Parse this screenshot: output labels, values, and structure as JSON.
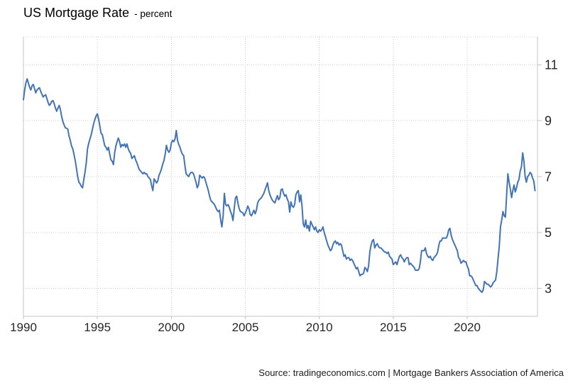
{
  "header": {
    "title": "US Mortgage Rate",
    "subtitle": "- percent"
  },
  "footer": {
    "source": "Source: tradingeconomics.com | Mortgage Bankers Association of America"
  },
  "chart_data": {
    "type": "line",
    "title": "US Mortgage Rate",
    "ylabel": "percent",
    "xlabel": "",
    "legend_position": "none",
    "grid": true,
    "y_axis_side": "right",
    "x_ticks": [
      1990,
      1995,
      2000,
      2005,
      2010,
      2015,
      2020
    ],
    "y_ticks": [
      3,
      5,
      7,
      9,
      11
    ],
    "x_range": [
      1990,
      2024.75
    ],
    "y_range": [
      2,
      12
    ],
    "colors": {
      "line": "#4274b5",
      "grid": "#cccccc",
      "border": "#c6c6c6",
      "text": "#262626"
    },
    "series": [
      {
        "name": "US Mortgage Rate",
        "frequency": "monthly",
        "start_year": 1990,
        "start_month": 1,
        "values": [
          9.75,
          10.1,
          10.35,
          10.5,
          10.35,
          10.2,
          10.1,
          10.25,
          10.3,
          10.15,
          10.0,
          10.1,
          10.15,
          10.18,
          10.05,
          9.95,
          9.85,
          9.9,
          9.93,
          9.8,
          9.65,
          9.55,
          9.6,
          9.7,
          9.72,
          9.6,
          9.45,
          9.34,
          9.45,
          9.55,
          9.4,
          9.15,
          8.97,
          8.85,
          8.75,
          8.73,
          8.7,
          8.45,
          8.3,
          8.1,
          8.0,
          7.8,
          7.58,
          7.3,
          7.0,
          6.8,
          6.74,
          6.65,
          6.6,
          6.9,
          7.17,
          7.5,
          8.0,
          8.2,
          8.35,
          8.5,
          8.7,
          8.9,
          9.05,
          9.17,
          9.25,
          9.05,
          8.8,
          8.55,
          8.5,
          8.3,
          8.1,
          8.05,
          7.95,
          8.05,
          7.8,
          7.6,
          7.55,
          7.43,
          7.85,
          8.1,
          8.25,
          8.38,
          8.25,
          8.05,
          8.15,
          8.1,
          8.17,
          8.05,
          8.17,
          8.0,
          7.9,
          7.83,
          7.65,
          7.7,
          7.75,
          7.6,
          7.5,
          7.37,
          7.25,
          7.2,
          7.15,
          7.1,
          7.15,
          7.1,
          7.1,
          7.0,
          6.95,
          6.9,
          6.67,
          6.5,
          6.92,
          6.85,
          6.77,
          6.85,
          7.05,
          7.15,
          7.28,
          7.45,
          7.57,
          7.8,
          8.12,
          7.95,
          7.87,
          7.95,
          8.2,
          8.3,
          8.25,
          8.35,
          8.65,
          8.3,
          8.15,
          8.05,
          7.9,
          7.8,
          7.75,
          7.4,
          7.1,
          7.05,
          7.0,
          7.1,
          7.15,
          7.15,
          7.1,
          6.95,
          6.8,
          6.6,
          6.7,
          7.05,
          7.0,
          6.95,
          7.0,
          6.95,
          6.8,
          6.65,
          6.5,
          6.3,
          6.15,
          6.1,
          6.05,
          6.0,
          5.9,
          5.8,
          5.75,
          5.8,
          5.45,
          5.2,
          5.6,
          6.4,
          6.0,
          5.95,
          6.0,
          5.9,
          5.75,
          5.64,
          5.43,
          5.85,
          6.24,
          6.3,
          6.05,
          5.86,
          5.75,
          5.73,
          5.7,
          5.6,
          5.7,
          5.8,
          5.95,
          5.85,
          5.64,
          5.6,
          5.7,
          5.8,
          5.67,
          5.8,
          6.06,
          6.15,
          6.2,
          6.24,
          6.32,
          6.4,
          6.53,
          6.65,
          6.78,
          6.5,
          6.35,
          6.24,
          6.15,
          6.1,
          6.06,
          6.2,
          6.32,
          6.17,
          6.25,
          6.53,
          6.56,
          6.4,
          6.3,
          6.35,
          6.2,
          6.1,
          5.73,
          6.1,
          5.95,
          5.9,
          6.0,
          6.35,
          6.45,
          6.5,
          6.1,
          6.35,
          5.95,
          5.3,
          5.2,
          5.45,
          5.15,
          5.25,
          5.05,
          5.4,
          5.3,
          5.2,
          5.1,
          5.2,
          5.05,
          5.0,
          5.1,
          5.05,
          5.1,
          5.2,
          5.0,
          4.85,
          4.7,
          4.55,
          4.45,
          4.35,
          4.4,
          4.55,
          4.65,
          4.7,
          4.6,
          4.65,
          4.55,
          4.6,
          4.55,
          4.35,
          4.15,
          4.2,
          4.05,
          4.1,
          4.1,
          4.0,
          4.05,
          4.0,
          3.9,
          3.8,
          3.7,
          3.75,
          3.6,
          3.45,
          3.5,
          3.5,
          3.55,
          3.75,
          3.7,
          3.6,
          3.8,
          4.3,
          4.55,
          4.7,
          4.75,
          4.45,
          4.55,
          4.6,
          4.5,
          4.45,
          4.45,
          4.4,
          4.35,
          4.3,
          4.3,
          4.25,
          4.3,
          4.15,
          4.1,
          4.05,
          3.85,
          3.9,
          3.95,
          3.85,
          4.0,
          4.15,
          4.2,
          4.1,
          4.05,
          3.95,
          4.05,
          4.1,
          4.1,
          3.85,
          3.9,
          3.85,
          3.8,
          3.75,
          3.65,
          3.65,
          3.65,
          3.7,
          3.95,
          4.35,
          4.35,
          4.35,
          4.45,
          4.25,
          4.15,
          4.1,
          4.15,
          4.05,
          4.0,
          4.1,
          4.15,
          4.2,
          4.3,
          4.55,
          4.7,
          4.7,
          4.8,
          4.8,
          4.8,
          4.8,
          4.9,
          5.1,
          5.15,
          4.9,
          4.75,
          4.65,
          4.55,
          4.45,
          4.35,
          4.1,
          4.05,
          3.9,
          3.95,
          4.0,
          3.95,
          3.95,
          3.8,
          3.7,
          3.45,
          3.45,
          3.4,
          3.3,
          3.2,
          3.1,
          3.1,
          3.0,
          2.95,
          2.9,
          2.86,
          2.95,
          3.25,
          3.2,
          3.15,
          3.15,
          3.1,
          3.05,
          3.1,
          3.2,
          3.25,
          3.3,
          3.6,
          4.05,
          4.5,
          5.2,
          5.45,
          5.75,
          5.6,
          5.55,
          6.35,
          7.1,
          6.8,
          6.55,
          6.25,
          6.5,
          6.7,
          6.45,
          6.6,
          6.8,
          6.9,
          7.2,
          7.35,
          7.85,
          7.55,
          7.0,
          6.8,
          7.0,
          7.05,
          7.15,
          7.1,
          6.95,
          6.85,
          6.5
        ]
      }
    ]
  }
}
